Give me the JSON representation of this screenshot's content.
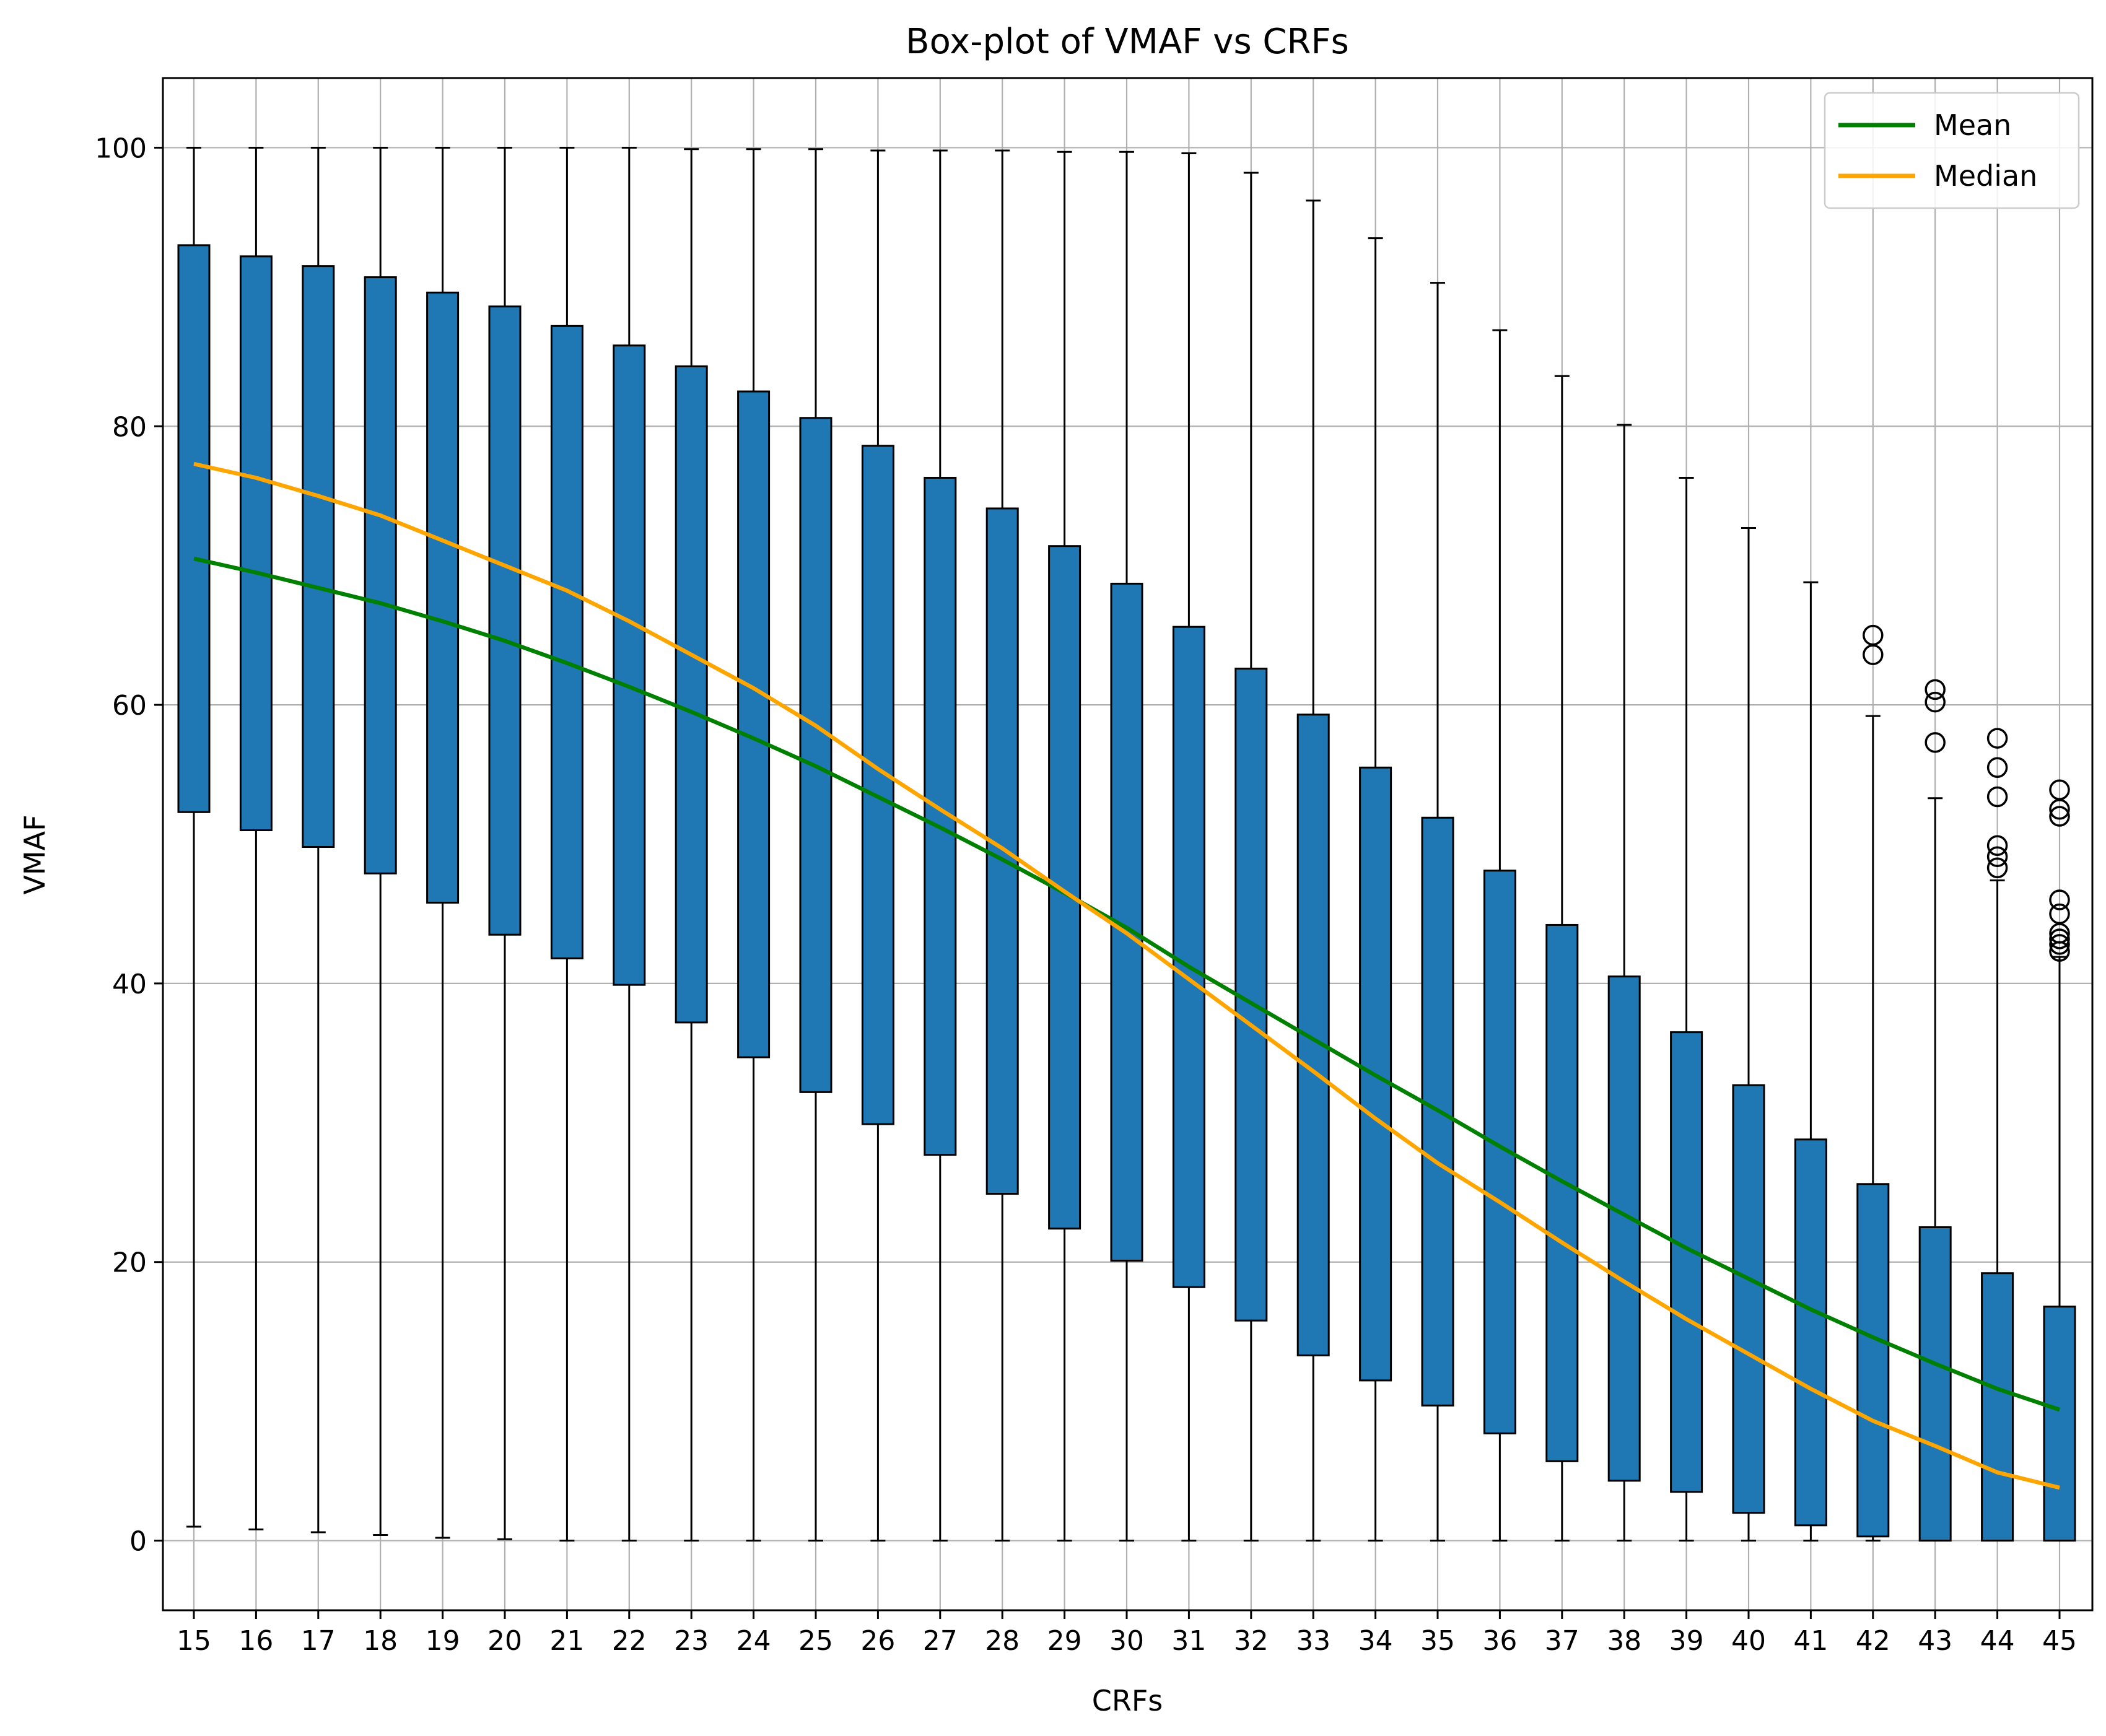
{
  "chart_data": {
    "type": "box",
    "title": "Box-plot of VMAF vs CRFs",
    "xlabel": "CRFs",
    "ylabel": "VMAF",
    "ylim": [
      -5,
      105
    ],
    "yticks": [
      0,
      20,
      40,
      60,
      80,
      100
    ],
    "grid": true,
    "legend_position": "top-right",
    "legend": [
      {
        "name": "Mean",
        "color": "#008000"
      },
      {
        "name": "Median",
        "color": "#FFA500"
      }
    ],
    "colors": {
      "box_fill": "#1F77B4",
      "box_edge": "#000000",
      "grid": "#B0B0B0"
    },
    "categories": [
      "15",
      "16",
      "17",
      "18",
      "19",
      "20",
      "21",
      "22",
      "23",
      "24",
      "25",
      "26",
      "27",
      "28",
      "29",
      "30",
      "31",
      "32",
      "33",
      "34",
      "35",
      "36",
      "37",
      "38",
      "39",
      "40",
      "41",
      "42",
      "43",
      "44",
      "45"
    ],
    "boxes": [
      {
        "q1": 52.3,
        "q3": 93.0,
        "whisker_low": 1.0,
        "whisker_high": 100.0,
        "median": 77.3,
        "mean": 70.5,
        "outliers": []
      },
      {
        "q1": 51.0,
        "q3": 92.2,
        "whisker_low": 0.8,
        "whisker_high": 100.0,
        "median": 76.3,
        "mean": 69.5,
        "outliers": []
      },
      {
        "q1": 49.8,
        "q3": 91.5,
        "whisker_low": 0.6,
        "whisker_high": 100.0,
        "median": 75.0,
        "mean": 68.4,
        "outliers": []
      },
      {
        "q1": 47.9,
        "q3": 90.7,
        "whisker_low": 0.4,
        "whisker_high": 100.0,
        "median": 73.6,
        "mean": 67.3,
        "outliers": []
      },
      {
        "q1": 45.8,
        "q3": 89.6,
        "whisker_low": 0.2,
        "whisker_high": 100.0,
        "median": 71.8,
        "mean": 66.0,
        "outliers": []
      },
      {
        "q1": 43.5,
        "q3": 88.6,
        "whisker_low": 0.1,
        "whisker_high": 100.0,
        "median": 70.0,
        "mean": 64.6,
        "outliers": []
      },
      {
        "q1": 41.8,
        "q3": 87.2,
        "whisker_low": 0.0,
        "whisker_high": 100.0,
        "median": 68.2,
        "mean": 63.0,
        "outliers": []
      },
      {
        "q1": 39.9,
        "q3": 85.8,
        "whisker_low": 0.0,
        "whisker_high": 100.0,
        "median": 66.0,
        "mean": 61.3,
        "outliers": []
      },
      {
        "q1": 37.2,
        "q3": 84.3,
        "whisker_low": 0.0,
        "whisker_high": 99.9,
        "median": 63.6,
        "mean": 59.5,
        "outliers": []
      },
      {
        "q1": 34.7,
        "q3": 82.5,
        "whisker_low": 0.0,
        "whisker_high": 99.9,
        "median": 61.2,
        "mean": 57.6,
        "outliers": []
      },
      {
        "q1": 32.2,
        "q3": 80.6,
        "whisker_low": 0.0,
        "whisker_high": 99.9,
        "median": 58.5,
        "mean": 55.6,
        "outliers": []
      },
      {
        "q1": 29.9,
        "q3": 78.6,
        "whisker_low": 0.0,
        "whisker_high": 99.8,
        "median": 55.4,
        "mean": 53.4,
        "outliers": []
      },
      {
        "q1": 27.7,
        "q3": 76.3,
        "whisker_low": 0.0,
        "whisker_high": 99.8,
        "median": 52.5,
        "mean": 51.2,
        "outliers": []
      },
      {
        "q1": 24.9,
        "q3": 74.1,
        "whisker_low": 0.0,
        "whisker_high": 99.8,
        "median": 49.7,
        "mean": 48.9,
        "outliers": []
      },
      {
        "q1": 22.4,
        "q3": 71.4,
        "whisker_low": 0.0,
        "whisker_high": 99.7,
        "median": 46.6,
        "mean": 46.5,
        "outliers": []
      },
      {
        "q1": 20.1,
        "q3": 68.7,
        "whisker_low": 0.0,
        "whisker_high": 99.7,
        "median": 43.6,
        "mean": 44.0,
        "outliers": []
      },
      {
        "q1": 18.2,
        "q3": 65.6,
        "whisker_low": 0.0,
        "whisker_high": 99.6,
        "median": 40.3,
        "mean": 41.2,
        "outliers": []
      },
      {
        "q1": 15.8,
        "q3": 62.6,
        "whisker_low": 0.0,
        "whisker_high": 98.2,
        "median": 37.0,
        "mean": 38.6,
        "outliers": []
      },
      {
        "q1": 13.3,
        "q3": 59.3,
        "whisker_low": 0.0,
        "whisker_high": 96.2,
        "median": 33.7,
        "mean": 36.0,
        "outliers": []
      },
      {
        "q1": 11.5,
        "q3": 55.5,
        "whisker_low": 0.0,
        "whisker_high": 93.5,
        "median": 30.3,
        "mean": 33.4,
        "outliers": []
      },
      {
        "q1": 9.7,
        "q3": 51.9,
        "whisker_low": 0.0,
        "whisker_high": 90.3,
        "median": 27.1,
        "mean": 30.9,
        "outliers": []
      },
      {
        "q1": 7.7,
        "q3": 48.1,
        "whisker_low": 0.0,
        "whisker_high": 86.9,
        "median": 24.3,
        "mean": 28.3,
        "outliers": []
      },
      {
        "q1": 5.7,
        "q3": 44.2,
        "whisker_low": 0.0,
        "whisker_high": 83.6,
        "median": 21.4,
        "mean": 25.8,
        "outliers": []
      },
      {
        "q1": 4.3,
        "q3": 40.5,
        "whisker_low": 0.0,
        "whisker_high": 80.1,
        "median": 18.6,
        "mean": 23.4,
        "outliers": []
      },
      {
        "q1": 3.5,
        "q3": 36.5,
        "whisker_low": 0.0,
        "whisker_high": 76.3,
        "median": 15.9,
        "mean": 21.0,
        "outliers": []
      },
      {
        "q1": 2.0,
        "q3": 32.7,
        "whisker_low": 0.0,
        "whisker_high": 72.7,
        "median": 13.4,
        "mean": 18.8,
        "outliers": []
      },
      {
        "q1": 1.1,
        "q3": 28.8,
        "whisker_low": 0.0,
        "whisker_high": 68.8,
        "median": 10.9,
        "mean": 16.6,
        "outliers": []
      },
      {
        "q1": 0.3,
        "q3": 25.6,
        "whisker_low": 0.0,
        "whisker_high": 59.2,
        "median": 8.6,
        "mean": 14.6,
        "outliers": [
          63.6,
          65.0
        ]
      },
      {
        "q1": 0.0,
        "q3": 22.5,
        "whisker_low": 0.0,
        "whisker_high": 53.3,
        "median": 6.8,
        "mean": 12.7,
        "outliers": [
          57.3,
          60.2,
          61.1
        ]
      },
      {
        "q1": 0.0,
        "q3": 19.2,
        "whisker_low": 0.0,
        "whisker_high": 47.4,
        "median": 4.9,
        "mean": 10.9,
        "outliers": [
          48.3,
          49.1,
          49.9,
          53.4,
          55.5,
          57.6
        ]
      },
      {
        "q1": 0.0,
        "q3": 16.8,
        "whisker_low": 0.0,
        "whisker_high": 41.9,
        "median": 3.8,
        "mean": 9.4,
        "outliers": [
          42.3,
          42.8,
          43.2,
          43.6,
          45.0,
          46.0,
          52.0,
          52.5,
          53.9
        ]
      }
    ]
  }
}
